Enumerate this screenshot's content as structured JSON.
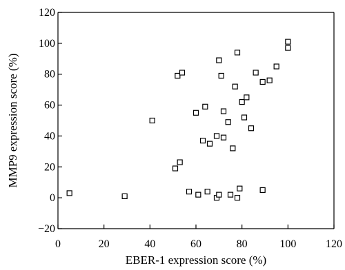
{
  "chart_data": {
    "type": "scatter",
    "title": "",
    "xlabel": "EBER-1 expression score (%)",
    "ylabel": "MMP9 expression score (%)",
    "xlim": [
      0,
      120
    ],
    "ylim": [
      -20,
      120
    ],
    "xticks": [
      "0",
      "20",
      "40",
      "60",
      "80",
      "100",
      "120"
    ],
    "yticks": [
      "-20",
      "0",
      "20",
      "40",
      "60",
      "80",
      "100",
      "120"
    ],
    "grid": false,
    "legend": "none",
    "marker": "open-square",
    "points": [
      {
        "x": 5,
        "y": 3
      },
      {
        "x": 29,
        "y": 1
      },
      {
        "x": 41,
        "y": 50
      },
      {
        "x": 51,
        "y": 19
      },
      {
        "x": 52,
        "y": 79
      },
      {
        "x": 53,
        "y": 23
      },
      {
        "x": 54,
        "y": 81
      },
      {
        "x": 57,
        "y": 4
      },
      {
        "x": 60,
        "y": 55
      },
      {
        "x": 61,
        "y": 2
      },
      {
        "x": 63,
        "y": 37
      },
      {
        "x": 64,
        "y": 59
      },
      {
        "x": 65,
        "y": 4
      },
      {
        "x": 66,
        "y": 35
      },
      {
        "x": 69,
        "y": 40
      },
      {
        "x": 69,
        "y": 0
      },
      {
        "x": 70,
        "y": 89
      },
      {
        "x": 70,
        "y": 2
      },
      {
        "x": 71,
        "y": 79
      },
      {
        "x": 72,
        "y": 56
      },
      {
        "x": 72,
        "y": 39
      },
      {
        "x": 74,
        "y": 49
      },
      {
        "x": 75,
        "y": 2
      },
      {
        "x": 76,
        "y": 32
      },
      {
        "x": 77,
        "y": 72
      },
      {
        "x": 78,
        "y": 94
      },
      {
        "x": 78,
        "y": 0
      },
      {
        "x": 79,
        "y": 6
      },
      {
        "x": 80,
        "y": 62
      },
      {
        "x": 81,
        "y": 52
      },
      {
        "x": 82,
        "y": 65
      },
      {
        "x": 84,
        "y": 45
      },
      {
        "x": 86,
        "y": 81
      },
      {
        "x": 89,
        "y": 75
      },
      {
        "x": 89,
        "y": 5
      },
      {
        "x": 92,
        "y": 76
      },
      {
        "x": 95,
        "y": 85
      },
      {
        "x": 100,
        "y": 101
      },
      {
        "x": 100,
        "y": 97
      }
    ]
  }
}
